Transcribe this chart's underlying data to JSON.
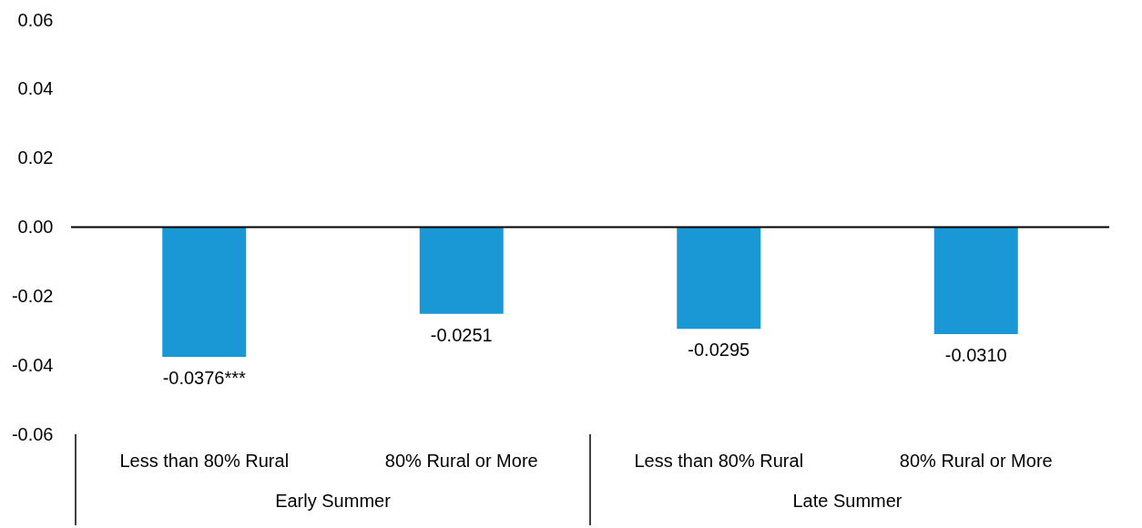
{
  "chart_data": {
    "type": "bar",
    "categories": [
      "Less than 80% Rural",
      "80% Rural or More",
      "Less than 80% Rural",
      "80% Rural or More"
    ],
    "values": [
      -0.0376,
      -0.0251,
      -0.0295,
      -0.031
    ],
    "value_labels": [
      "-0.0376***",
      "-0.0251",
      "-0.0295",
      "-0.0310"
    ],
    "color": "#1a98d5",
    "ylim": [
      -0.06,
      0.06
    ],
    "yticks": [
      -0.06,
      -0.04,
      -0.02,
      {
        "value": 0,
        "label": "0.00"
      },
      0.02,
      0.04,
      0.06
    ],
    "annotations": [
      "Early Summer",
      "Late Summer"
    ]
  }
}
